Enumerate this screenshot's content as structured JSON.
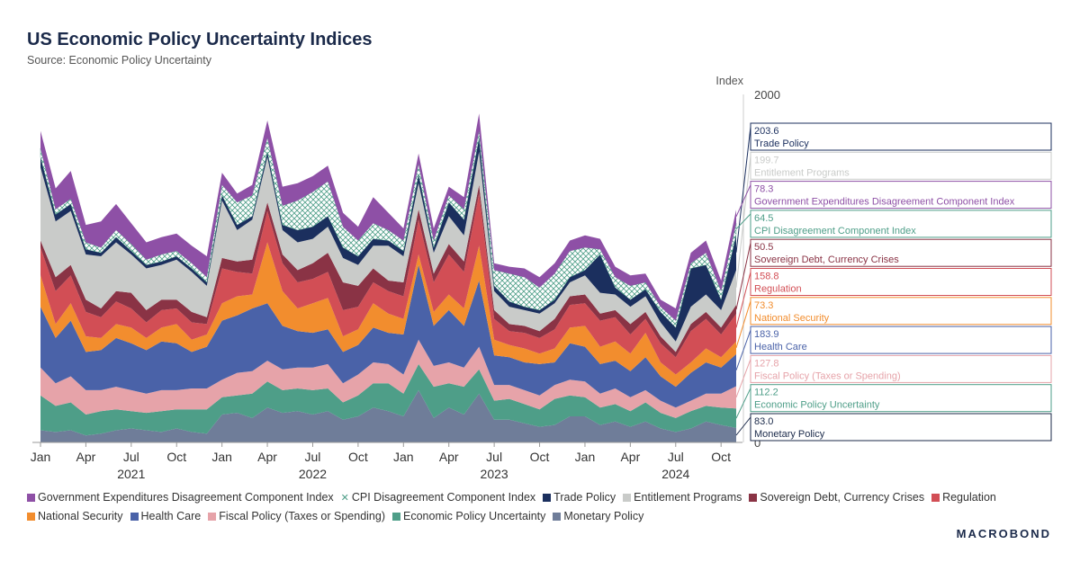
{
  "header": {
    "title": "US Economic Policy Uncertainty Indices",
    "subtitle": "Source: Economic Policy Uncertainty"
  },
  "brand": "MACROBOND",
  "chart_data": {
    "type": "area",
    "stacked": true,
    "title": "US Economic Policy Uncertainty Indices",
    "ylabel": "Index",
    "ylim": [
      0,
      2000
    ],
    "y_ticks": [
      2000,
      0
    ],
    "x_ticks": [
      {
        "label": "Jan",
        "index": 0
      },
      {
        "label": "Apr",
        "index": 3
      },
      {
        "label": "Jul",
        "index": 6
      },
      {
        "label": "Oct",
        "index": 9
      },
      {
        "label": "Jan",
        "index": 12
      },
      {
        "label": "Apr",
        "index": 15
      },
      {
        "label": "Jul",
        "index": 18
      },
      {
        "label": "Oct",
        "index": 21
      },
      {
        "label": "Jan",
        "index": 24
      },
      {
        "label": "Apr",
        "index": 27
      },
      {
        "label": "Jul",
        "index": 30
      },
      {
        "label": "Oct",
        "index": 33
      },
      {
        "label": "Jan",
        "index": 36
      },
      {
        "label": "Apr",
        "index": 39
      },
      {
        "label": "Jul",
        "index": 42
      },
      {
        "label": "Oct",
        "index": 45
      }
    ],
    "year_labels": [
      {
        "label": "2021",
        "index": 6
      },
      {
        "label": "2022",
        "index": 18
      },
      {
        "label": "2023",
        "index": 30
      },
      {
        "label": "2024",
        "index": 42
      }
    ],
    "months": 47,
    "series": [
      {
        "name": "Monetary Policy",
        "color": "#6f7d99",
        "values": [
          70,
          60,
          70,
          40,
          50,
          70,
          80,
          70,
          60,
          80,
          60,
          50,
          160,
          170,
          140,
          200,
          170,
          180,
          160,
          180,
          130,
          150,
          200,
          180,
          150,
          300,
          140,
          200,
          160,
          280,
          130,
          130,
          110,
          90,
          100,
          150,
          150,
          100,
          120,
          90,
          120,
          80,
          60,
          80,
          120,
          100,
          83
        ]
      },
      {
        "name": "Economic Policy Uncertainty",
        "color": "#4e9e88",
        "values": [
          200,
          150,
          160,
          120,
          130,
          120,
          100,
          100,
          120,
          110,
          130,
          140,
          100,
          100,
          140,
          150,
          130,
          130,
          140,
          130,
          100,
          120,
          140,
          160,
          130,
          150,
          180,
          140,
          160,
          140,
          110,
          120,
          110,
          100,
          150,
          120,
          110,
          100,
          100,
          90,
          110,
          90,
          80,
          100,
          90,
          100,
          112
        ]
      },
      {
        "name": "Fiscal Policy (Taxes or Spending)",
        "color": "#e6a3a9",
        "values": [
          160,
          130,
          150,
          140,
          120,
          130,
          120,
          110,
          120,
          110,
          120,
          120,
          100,
          130,
          130,
          120,
          120,
          120,
          130,
          140,
          110,
          120,
          120,
          110,
          110,
          140,
          120,
          120,
          110,
          130,
          90,
          80,
          80,
          80,
          80,
          90,
          90,
          80,
          90,
          80,
          70,
          70,
          60,
          60,
          70,
          80,
          128
        ]
      },
      {
        "name": "Health Care",
        "color": "#4a62a8",
        "values": [
          350,
          260,
          320,
          220,
          230,
          280,
          270,
          250,
          280,
          270,
          210,
          240,
          340,
          330,
          360,
          330,
          250,
          210,
          200,
          200,
          180,
          170,
          200,
          180,
          230,
          430,
          230,
          300,
          240,
          380,
          170,
          160,
          160,
          180,
          130,
          210,
          200,
          170,
          160,
          150,
          190,
          140,
          120,
          160,
          180,
          150,
          184
        ]
      },
      {
        "name": "National Security",
        "color": "#f28d2e",
        "values": [
          180,
          80,
          100,
          90,
          70,
          80,
          90,
          70,
          80,
          110,
          70,
          70,
          100,
          110,
          80,
          350,
          200,
          130,
          170,
          180,
          90,
          90,
          140,
          110,
          90,
          60,
          80,
          90,
          100,
          200,
          90,
          70,
          80,
          60,
          80,
          90,
          120,
          100,
          110,
          100,
          140,
          80,
          70,
          60,
          80,
          60,
          73
        ]
      },
      {
        "name": "Regulation",
        "color": "#d24e55",
        "values": [
          160,
          190,
          160,
          140,
          120,
          130,
          110,
          90,
          100,
          90,
          100,
          60,
          200,
          140,
          120,
          180,
          160,
          150,
          140,
          150,
          150,
          130,
          120,
          130,
          130,
          200,
          170,
          230,
          210,
          300,
          120,
          80,
          90,
          90,
          110,
          130,
          130,
          150,
          140,
          110,
          80,
          110,
          100,
          180,
          170,
          130,
          159
        ]
      },
      {
        "name": "Sovereign Debt, Currency Crises",
        "color": "#8a3345",
        "values": [
          40,
          80,
          60,
          70,
          50,
          60,
          90,
          70,
          60,
          50,
          60,
          40,
          60,
          60,
          80,
          50,
          50,
          70,
          90,
          110,
          160,
          120,
          80,
          60,
          80,
          60,
          50,
          60,
          60,
          50,
          50,
          40,
          40,
          40,
          60,
          50,
          50,
          40,
          40,
          60,
          40,
          40,
          30,
          40,
          40,
          40,
          51
        ]
      },
      {
        "name": "Entitlement Programs",
        "color": "#c9cbc9",
        "values": [
          420,
          320,
          310,
          260,
          300,
          280,
          220,
          240,
          200,
          230,
          230,
          180,
          330,
          180,
          230,
          260,
          140,
          160,
          140,
          150,
          140,
          120,
          130,
          200,
          150,
          150,
          120,
          160,
          150,
          190,
          110,
          100,
          90,
          100,
          90,
          80,
          110,
          120,
          90,
          100,
          90,
          80,
          60,
          100,
          100,
          100,
          200
        ]
      },
      {
        "name": "Trade Policy",
        "color": "#1b2f5e",
        "values": [
          60,
          40,
          40,
          30,
          20,
          30,
          20,
          20,
          20,
          20,
          20,
          20,
          30,
          30,
          20,
          30,
          30,
          70,
          70,
          60,
          60,
          50,
          40,
          30,
          30,
          50,
          30,
          80,
          90,
          80,
          30,
          30,
          20,
          20,
          20,
          30,
          30,
          220,
          40,
          40,
          40,
          60,
          80,
          220,
          170,
          60,
          204
        ]
      },
      {
        "name": "CPI Disagreement Component Index",
        "color": "#4e9e88",
        "hatched": true,
        "values": [
          50,
          30,
          30,
          40,
          30,
          40,
          40,
          30,
          40,
          30,
          30,
          30,
          60,
          130,
          120,
          80,
          110,
          170,
          200,
          200,
          120,
          90,
          90,
          60,
          60,
          60,
          40,
          40,
          60,
          40,
          90,
          160,
          170,
          130,
          150,
          150,
          130,
          30,
          60,
          80,
          40,
          30,
          40,
          30,
          70,
          50,
          65
        ]
      },
      {
        "name": "Government Expenditures Disagreement Component Index",
        "color": "#8e50a6",
        "values": [
          100,
          120,
          160,
          100,
          150,
          150,
          120,
          100,
          100,
          100,
          100,
          120,
          70,
          50,
          60,
          100,
          110,
          100,
          90,
          90,
          80,
          80,
          150,
          100,
          70,
          60,
          70,
          50,
          70,
          100,
          40,
          40,
          50,
          60,
          60,
          60,
          70,
          60,
          60,
          60,
          50,
          40,
          70,
          60,
          70,
          60,
          78
        ]
      }
    ],
    "value_labels": [
      {
        "value": "203.6",
        "series": "Trade Policy",
        "color": "#1b2f5e"
      },
      {
        "value": "199.7",
        "series": "Entitlement Programs",
        "color": "#c9cbc9"
      },
      {
        "value": "78.3",
        "series": "Government Expenditures Disagreement Component Index",
        "color": "#8e50a6"
      },
      {
        "value": "64.5",
        "series": "CPI Disagreement Component Index",
        "color": "#4e9e88"
      },
      {
        "value": "50.5",
        "series": "Sovereign Debt, Currency Crises",
        "color": "#8a3345"
      },
      {
        "value": "158.8",
        "series": "Regulation",
        "color": "#d24e55"
      },
      {
        "value": "73.3",
        "series": "National Security",
        "color": "#f28d2e"
      },
      {
        "value": "183.9",
        "series": "Health Care",
        "color": "#4a62a8"
      },
      {
        "value": "127.8",
        "series": "Fiscal Policy (Taxes or Spending)",
        "color": "#e6a3a9"
      },
      {
        "value": "112.2",
        "series": "Economic Policy Uncertainty",
        "color": "#4e9e88"
      },
      {
        "value": "83.0",
        "series": "Monetary Policy",
        "color": "#1b2a4a"
      }
    ],
    "legend": [
      {
        "label": "Government Expenditures Disagreement Component Index",
        "color": "#8e50a6"
      },
      {
        "label": "CPI Disagreement Component Index",
        "color": "#4e9e88",
        "hatched": true
      },
      {
        "label": "Trade Policy",
        "color": "#1b2f5e"
      },
      {
        "label": "Entitlement Programs",
        "color": "#c9cbc9"
      },
      {
        "label": "Sovereign Debt, Currency Crises",
        "color": "#8a3345"
      },
      {
        "label": "Regulation",
        "color": "#d24e55"
      },
      {
        "label": "National Security",
        "color": "#f28d2e"
      },
      {
        "label": "Health Care",
        "color": "#4a62a8"
      },
      {
        "label": "Fiscal Policy (Taxes or Spending)",
        "color": "#e6a3a9"
      },
      {
        "label": "Economic Policy Uncertainty",
        "color": "#4e9e88"
      },
      {
        "label": "Monetary Policy",
        "color": "#6f7d99"
      }
    ]
  }
}
